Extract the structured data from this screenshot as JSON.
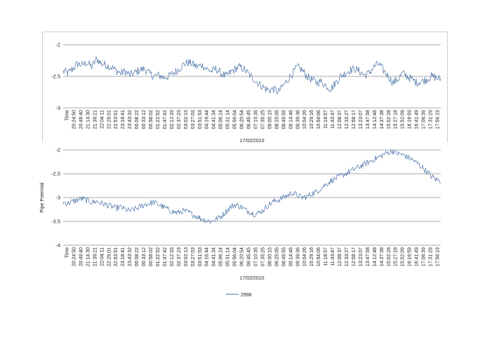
{
  "chart_data": [
    {
      "type": "line",
      "title": "",
      "ylabel": "",
      "xlabel": "17/02/2010",
      "ylim": [
        -3,
        -2
      ],
      "yticks": [
        -2,
        -2.5,
        -3
      ],
      "grid": true,
      "x_tick_labels": [
        "Time",
        "20:24:50",
        "20:49:40",
        "21:14:30",
        "21:39:21",
        "22:04:11",
        "22:29:01",
        "22:53:51",
        "23:18:41",
        "23:43:32",
        "00:08:22",
        "00:33:12",
        "00:58:02",
        "01:22:52",
        "01:47:42",
        "02:12:33",
        "02:37:23",
        "03:02:13",
        "03:27:03",
        "03:51:53",
        "04:16:44",
        "04:41:34",
        "05:06:24",
        "05:31:14",
        "05:56:04",
        "06:20:54",
        "06:45:45",
        "07:10:35",
        "07:35:25",
        "08:00:15",
        "08:25:05",
        "08:49:55",
        "09:14:46",
        "09:39:36",
        "10:04:26",
        "10:29:16",
        "10:54:06",
        "11:18:57",
        "11:43:47",
        "12:08:37",
        "12:33:27",
        "12:58:17",
        "13:23:07",
        "13:47:58",
        "14:12:48",
        "14:37:38",
        "15:02:28",
        "15:27:18",
        "15:52:09",
        "16:16:59",
        "16:41:49",
        "17:06:39",
        "17:31:29",
        "17:56:19"
      ],
      "series": [
        {
          "color": "#4a72a8",
          "values": [
            -2.42,
            -2.45,
            -2.38,
            -2.3,
            -2.32,
            -2.28,
            -2.35,
            -2.22,
            -2.3,
            -2.32,
            -2.35,
            -2.4,
            -2.45,
            -2.42,
            -2.48,
            -2.44,
            -2.4,
            -2.38,
            -2.45,
            -2.5,
            -2.48,
            -2.52,
            -2.5,
            -2.45,
            -2.4,
            -2.32,
            -2.28,
            -2.3,
            -2.35,
            -2.32,
            -2.38,
            -2.42,
            -2.38,
            -2.45,
            -2.5,
            -2.44,
            -2.38,
            -2.35,
            -2.4,
            -2.48,
            -2.55,
            -2.62,
            -2.68,
            -2.72,
            -2.7,
            -2.75,
            -2.65,
            -2.55,
            -2.45,
            -2.35,
            -2.4,
            -2.5,
            -2.55,
            -2.6,
            -2.58,
            -2.65,
            -2.7,
            -2.6,
            -2.5,
            -2.45,
            -2.4,
            -2.38,
            -2.42,
            -2.48,
            -2.45,
            -2.35,
            -2.3,
            -2.4,
            -2.5,
            -2.6,
            -2.55,
            -2.45,
            -2.5,
            -2.55,
            -2.6,
            -2.58,
            -2.55,
            -2.5,
            -2.52,
            -2.55
          ]
        }
      ]
    },
    {
      "type": "line",
      "title": "",
      "ylabel": "Pipe Potential",
      "xlabel": "17/02/2010",
      "ylim": [
        -4,
        -2
      ],
      "yticks": [
        -2,
        -2.5,
        -3,
        -3.5,
        -4
      ],
      "grid": true,
      "legend": "bottom",
      "x_tick_labels": [
        "Time",
        "20:24:50",
        "20:49:40",
        "21:14:30",
        "21:39:21",
        "22:04:11",
        "22:29:01",
        "22:53:51",
        "23:18:41",
        "23:43:32",
        "00:08:22",
        "00:33:12",
        "00:58:02",
        "01:22:52",
        "01:47:42",
        "02:12:33",
        "02:37:23",
        "03:02:13",
        "03:27:03",
        "03:51:53",
        "04:16:44",
        "04:41:34",
        "05:06:24",
        "05:31:14",
        "05:56:04",
        "06:20:54",
        "06:45:45",
        "07:10:35",
        "07:35:25",
        "08:00:15",
        "08:25:05",
        "08:49:55",
        "09:14:46",
        "09:39:36",
        "10:04:26",
        "10:29:16",
        "10:54:06",
        "11:18:57",
        "11:43:47",
        "12:08:37",
        "12:33:27",
        "12:58:17",
        "13:23:07",
        "13:47:58",
        "14:12:48",
        "14:37:38",
        "15:02:28",
        "15:27:18",
        "15:52:09",
        "16:16:59",
        "16:41:49",
        "17:06:39",
        "17:31:29",
        "17:56:19"
      ],
      "series": [
        {
          "name": "2996",
          "color": "#4a72a8",
          "values": [
            -3.1,
            -3.12,
            -3.08,
            -3.05,
            -3.02,
            -3.06,
            -3.1,
            -3.08,
            -3.12,
            -3.15,
            -3.18,
            -3.22,
            -3.2,
            -3.25,
            -3.28,
            -3.24,
            -3.2,
            -3.15,
            -3.12,
            -3.1,
            -3.15,
            -3.2,
            -3.25,
            -3.3,
            -3.32,
            -3.28,
            -3.3,
            -3.35,
            -3.4,
            -3.45,
            -3.48,
            -3.5,
            -3.45,
            -3.4,
            -3.3,
            -3.2,
            -3.15,
            -3.18,
            -3.25,
            -3.3,
            -3.35,
            -3.32,
            -3.25,
            -3.15,
            -3.08,
            -3.05,
            -3.0,
            -2.95,
            -2.9,
            -2.95,
            -3.0,
            -2.98,
            -2.92,
            -2.88,
            -2.8,
            -2.72,
            -2.65,
            -2.6,
            -2.55,
            -2.5,
            -2.45,
            -2.4,
            -2.35,
            -2.3,
            -2.25,
            -2.2,
            -2.15,
            -2.1,
            -2.05,
            -2.02,
            -2.08,
            -2.1,
            -2.15,
            -2.2,
            -2.28,
            -2.35,
            -2.45,
            -2.55,
            -2.62,
            -2.65
          ]
        }
      ]
    }
  ]
}
